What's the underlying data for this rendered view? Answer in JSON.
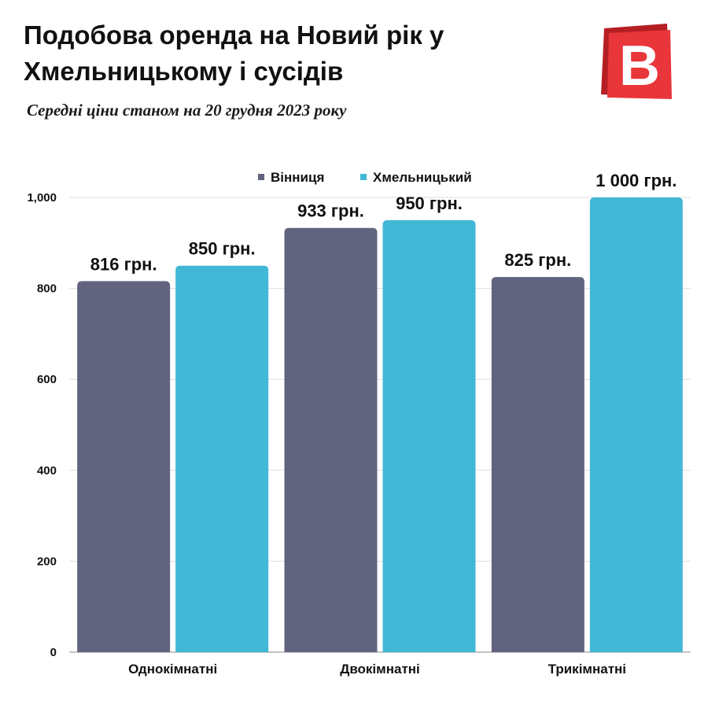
{
  "header": {
    "title": "Подобова оренда на Новий рік у Хмельницькому і сусідів",
    "subtitle": "Середні ціни станом на 20 грудня 2023 року"
  },
  "logo": {
    "letter": "B",
    "color": "#e8363a",
    "icon": "brand-logo-icon"
  },
  "chart_data": {
    "type": "bar",
    "categories": [
      "Однокімнатні",
      "Двокімнатні",
      "Трикімнатні"
    ],
    "series": [
      {
        "name": "Вінниця",
        "values": [
          816,
          933,
          825
        ],
        "labels": [
          "816 грн.",
          "933 грн.",
          "825 грн."
        ],
        "color": "#62647f"
      },
      {
        "name": "Хмельницький",
        "values": [
          850,
          950,
          1000
        ],
        "labels": [
          "850 грн.",
          "950 грн.",
          "1 000 грн."
        ],
        "color": "#42b7d6"
      }
    ],
    "ylim": [
      0,
      1000
    ],
    "yticks": [
      0,
      200,
      400,
      600,
      800,
      1000
    ],
    "ytick_labels": [
      "0",
      "200",
      "400",
      "600",
      "800",
      "1,000"
    ],
    "grid": true,
    "legend": "top-center"
  }
}
